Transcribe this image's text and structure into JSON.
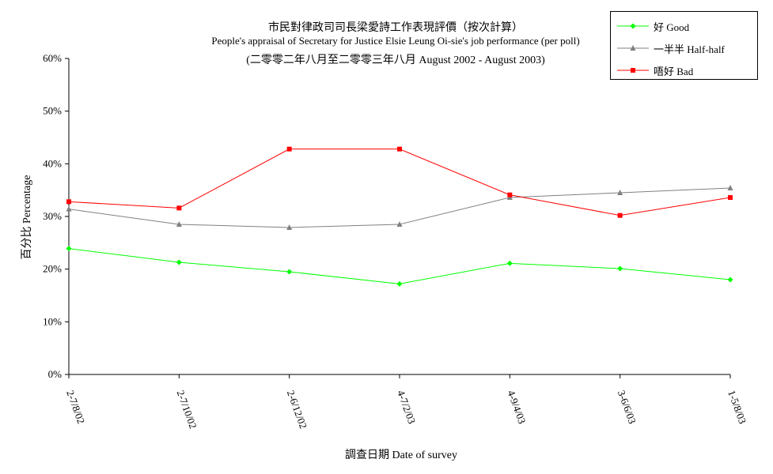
{
  "chart_data": {
    "type": "line",
    "title": "市民對律政司司長梁愛詩工作表現評價（按次計算）",
    "subtitle": "People's appraisal of Secretary for Justice Elsie Leung Oi-sie's job performance (per poll)",
    "period": "(二零零二年八月至二零零三年八月 August 2002 - August 2003)",
    "xlabel": "調查日期 Date of survey",
    "ylabel": "百分比 Percentage",
    "categories": [
      "2-7/8/02",
      "2-7/10/02",
      "2-6/12/02",
      "4-7/2/03",
      "4-9/4/03",
      "3-6/6/03",
      "1-5/8/03"
    ],
    "ylim": [
      0,
      60
    ],
    "yticks": [
      "0%",
      "10%",
      "20%",
      "30%",
      "40%",
      "50%",
      "60%"
    ],
    "grid": false,
    "legend_position": "top-right",
    "series": [
      {
        "name": "好 Good",
        "color": "#00ff00",
        "marker": "diamond",
        "values": [
          23.9,
          21.3,
          19.5,
          17.2,
          21.1,
          20.1,
          18.0
        ]
      },
      {
        "name": "一半半 Half-half",
        "color": "#808080",
        "marker": "triangle",
        "values": [
          31.4,
          28.5,
          27.9,
          28.5,
          33.6,
          34.5,
          35.4
        ]
      },
      {
        "name": "唔好 Bad",
        "color": "#ff0000",
        "marker": "square",
        "values": [
          32.8,
          31.6,
          42.8,
          42.8,
          34.1,
          30.2,
          33.6
        ]
      }
    ]
  }
}
